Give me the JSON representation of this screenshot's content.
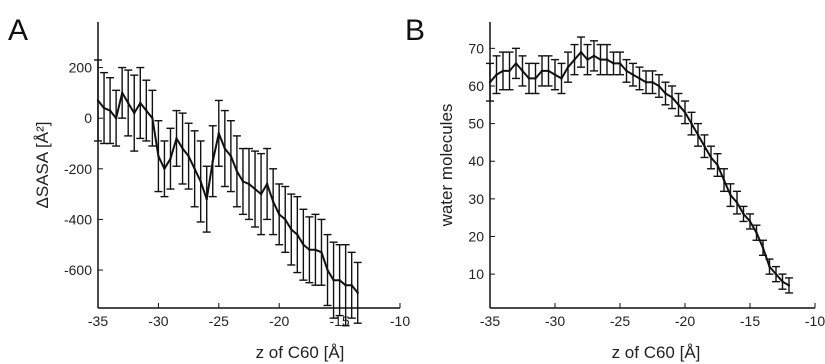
{
  "chart_data": [
    {
      "type": "line",
      "panel_label": "A",
      "title": "",
      "xlabel": "z of C60 [Å]",
      "ylabel": "ΔSASA [Å²]",
      "xlim": [
        -35,
        -10
      ],
      "ylim": [
        -750,
        380
      ],
      "xticks": [
        -35,
        -30,
        -25,
        -20,
        -15,
        -10
      ],
      "yticks": [
        200,
        0,
        -200,
        -400,
        -600
      ],
      "xtick_labels": [
        "-35",
        "-30",
        "-25",
        "-20",
        "-15",
        "-10"
      ],
      "ytick_labels": [
        "200",
        "0",
        "-200",
        "-400",
        "-600"
      ],
      "error_bars": true,
      "series": [
        {
          "x": [
            -35,
            -34.5,
            -34,
            -33.5,
            -33,
            -32.5,
            -32,
            -31.5,
            -31,
            -30.5,
            -30,
            -29.5,
            -29,
            -28.5,
            -28,
            -27.5,
            -27,
            -26.5,
            -26,
            -25.5,
            -25,
            -24.5,
            -24,
            -23.5,
            -23,
            -22.5,
            -22,
            -21.5,
            -21,
            -20.5,
            -20,
            -19.5,
            -19,
            -18.5,
            -18,
            -17.5,
            -17,
            -16.5,
            -16,
            -15.5,
            -15,
            -14.5,
            -14,
            -13.5
          ],
          "y": [
            70,
            40,
            30,
            0,
            100,
            60,
            20,
            60,
            30,
            0,
            -150,
            -200,
            -160,
            -80,
            -120,
            -150,
            -200,
            -250,
            -320,
            -170,
            -60,
            -120,
            -150,
            -210,
            -250,
            -260,
            -280,
            -300,
            -260,
            -330,
            -380,
            -400,
            -440,
            -460,
            -500,
            -520,
            -520,
            -530,
            -600,
            -640,
            -640,
            -660,
            -660,
            -690
          ],
          "err": [
            160,
            140,
            130,
            110,
            100,
            130,
            150,
            140,
            120,
            110,
            140,
            110,
            120,
            110,
            140,
            130,
            150,
            160,
            130,
            140,
            130,
            150,
            140,
            140,
            130,
            140,
            150,
            160,
            140,
            130,
            120,
            130,
            140,
            150,
            140,
            130,
            140,
            130,
            140,
            150,
            140,
            160,
            130,
            120
          ]
        }
      ]
    },
    {
      "type": "line",
      "panel_label": "B",
      "title": "",
      "xlabel": "z of C60 [Å]",
      "ylabel": "water molecules",
      "xlim": [
        -35,
        -10
      ],
      "ylim": [
        1,
        77
      ],
      "xticks": [
        -35,
        -30,
        -25,
        -20,
        -15,
        -10
      ],
      "yticks": [
        10,
        20,
        30,
        40,
        50,
        60,
        70
      ],
      "xtick_labels": [
        "-35",
        "-30",
        "-25",
        "-20",
        "-15",
        "-10"
      ],
      "ytick_labels": [
        "10",
        "20",
        "30",
        "40",
        "50",
        "60",
        "70"
      ],
      "error_bars": true,
      "series": [
        {
          "x": [
            -35,
            -34.5,
            -34,
            -33.5,
            -33,
            -32.5,
            -32,
            -31.5,
            -31,
            -30.5,
            -30,
            -29.5,
            -29,
            -28.5,
            -28,
            -27.5,
            -27,
            -26.5,
            -26,
            -25.5,
            -25,
            -24.5,
            -24,
            -23.5,
            -23,
            -22.5,
            -22,
            -21.5,
            -21,
            -20.5,
            -20,
            -19.5,
            -19,
            -18.5,
            -18,
            -17.5,
            -17,
            -16.5,
            -16,
            -15.5,
            -15,
            -14.5,
            -14,
            -13.5,
            -13,
            -12.5,
            -12
          ],
          "y": [
            61,
            63,
            64,
            64,
            66,
            64,
            62,
            62,
            64,
            64,
            63,
            62,
            65,
            67,
            69,
            67,
            68,
            67,
            67,
            66,
            66,
            64,
            63,
            62,
            61,
            61,
            60,
            58,
            57,
            55,
            53,
            50,
            47,
            44,
            41,
            39,
            35,
            31,
            29,
            26,
            24,
            21,
            17,
            12,
            10,
            8,
            7
          ],
          "err": [
            5,
            5,
            5,
            5,
            4,
            4,
            4,
            4,
            4,
            4,
            4,
            4,
            4,
            4,
            4,
            4,
            4,
            4,
            4,
            3,
            3,
            3,
            3,
            3,
            3,
            3,
            3,
            3,
            3,
            3,
            3,
            3,
            3,
            3,
            3,
            3,
            3,
            3,
            3,
            2,
            2,
            2,
            2,
            2,
            2,
            2,
            2
          ]
        }
      ]
    }
  ]
}
